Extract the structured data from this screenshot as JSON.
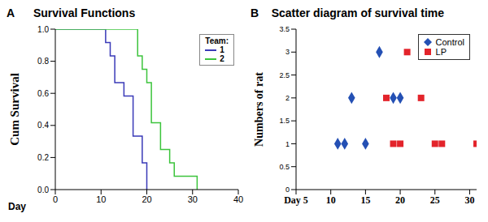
{
  "chart_data": [
    {
      "type": "line",
      "panel": "A",
      "title": "Survival Functions",
      "x_label": "Day",
      "y_label": "Cum Survival",
      "xlim": [
        0,
        40
      ],
      "xticks": [
        0,
        10,
        20,
        30,
        40
      ],
      "ylim": [
        0,
        1
      ],
      "yticks": [
        {
          "value": 0,
          "label": "0.0"
        },
        {
          "value": 0.2,
          "label": "0.2"
        },
        {
          "value": 0.4,
          "label": "0.4"
        },
        {
          "value": 0.6,
          "label": "0.6"
        },
        {
          "value": 0.8,
          "label": "0.8"
        },
        {
          "value": 1,
          "label": "1.0"
        }
      ],
      "legend": "upper right",
      "legend_title": "Team:",
      "series": [
        {
          "name": "1",
          "color": "#3a3ab8",
          "line_style": "step",
          "x": [
            0,
            11,
            12,
            13,
            15,
            17,
            19,
            20
          ],
          "values": [
            1,
            0.917,
            0.833,
            0.667,
            0.583,
            0.333,
            0.167,
            0
          ]
        },
        {
          "name": "2",
          "color": "#3cc43c",
          "line_style": "step",
          "x": [
            0,
            18,
            19,
            20,
            21,
            23,
            25,
            26,
            31
          ],
          "values": [
            1,
            0.833,
            0.75,
            0.667,
            0.417,
            0.25,
            0.167,
            0.083,
            0
          ]
        }
      ]
    },
    {
      "type": "scatter",
      "panel": "B",
      "title": "Scatter diagram of survival time",
      "y_label": "Numbers of rat",
      "xlim": [
        5,
        31
      ],
      "xticks": [
        {
          "value": 5,
          "label": "Day 5"
        },
        10,
        15,
        20,
        25,
        30
      ],
      "ylim": [
        0,
        3.5
      ],
      "yticks": [
        0,
        0.5,
        1,
        1.5,
        2,
        2.5,
        3,
        3.5
      ],
      "legend": "upper right",
      "series": [
        {
          "name": "Control",
          "color": "#2450b4",
          "marker": "diamond",
          "x": [
            11,
            12,
            13,
            15,
            17,
            19,
            20
          ],
          "values": [
            1,
            1,
            2,
            1,
            3,
            2,
            2
          ]
        },
        {
          "name": "LP",
          "color": "#e3242b",
          "marker": "square",
          "x": [
            18,
            19,
            20,
            21,
            23,
            25,
            26,
            31
          ],
          "values": [
            2,
            1,
            1,
            3,
            2,
            1,
            1,
            1
          ]
        }
      ]
    }
  ]
}
